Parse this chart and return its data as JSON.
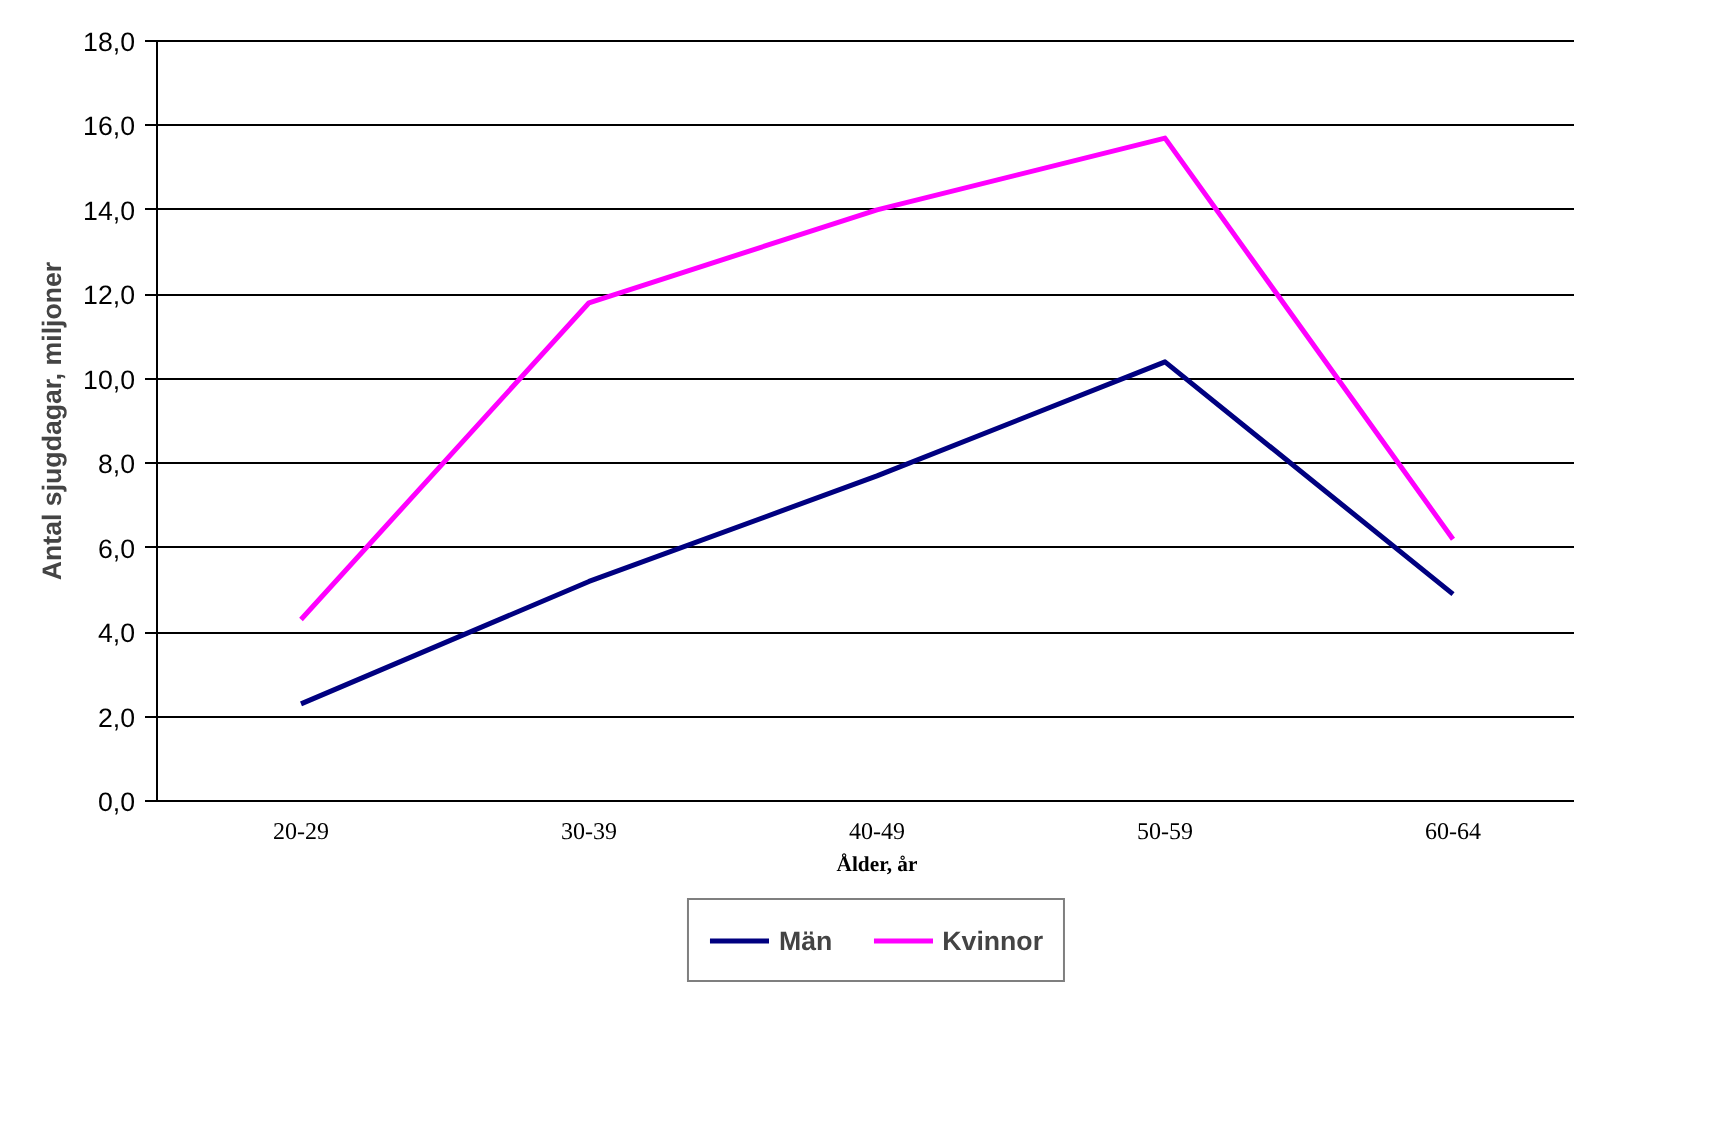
{
  "chart_data": {
    "type": "line",
    "xlabel": "Ålder, år",
    "ylabel": "Antal sjugdagar, miljoner",
    "categories": [
      "20-29",
      "30-39",
      "40-49",
      "50-59",
      "60-64"
    ],
    "series": [
      {
        "name": "Män",
        "color": "#000080",
        "values": [
          2.3,
          5.2,
          7.7,
          10.4,
          4.9
        ]
      },
      {
        "name": "Kvinnor",
        "color": "#ff00ff",
        "values": [
          4.3,
          11.8,
          14.0,
          15.7,
          6.2
        ]
      }
    ],
    "ylim": [
      0,
      18
    ],
    "yticks": [
      {
        "value": 0,
        "label": "0,0"
      },
      {
        "value": 2,
        "label": "2,0"
      },
      {
        "value": 4,
        "label": "4,0"
      },
      {
        "value": 6,
        "label": "6,0"
      },
      {
        "value": 8,
        "label": "8,0"
      },
      {
        "value": 10,
        "label": "10,0"
      },
      {
        "value": 12,
        "label": "12,0"
      },
      {
        "value": 14,
        "label": "14,0"
      },
      {
        "value": 16,
        "label": "16,0"
      },
      {
        "value": 18,
        "label": "18,0"
      }
    ],
    "grid": "y",
    "legend": "bottom",
    "marker": "none",
    "line_style": "solid"
  }
}
